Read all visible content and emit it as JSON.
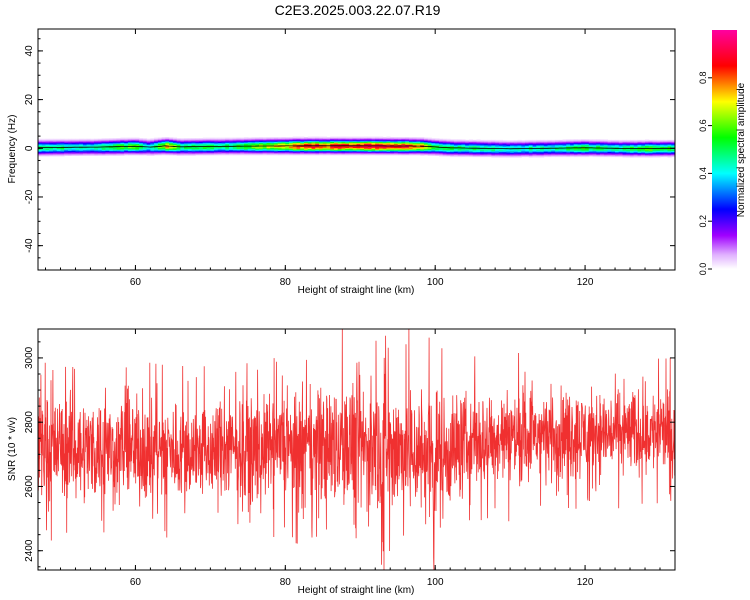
{
  "title": "C2E3.2025.003.22.07.R19",
  "colors": {
    "snr_line": "#f03030",
    "colormap": [
      "#ffffff",
      "#a000ff",
      "#0000ff",
      "#00ffff",
      "#00ff00",
      "#ffff00",
      "#ff0000",
      "#ff00a0"
    ]
  },
  "chart_data": [
    {
      "type": "heatmap",
      "xlabel": "Height of straight line (km)",
      "ylabel": "Frequency (Hz)",
      "xlim": [
        47,
        132
      ],
      "ylim": [
        -50,
        49
      ],
      "xticks": [
        60,
        80,
        100,
        120
      ],
      "yticks": [
        -40,
        -20,
        0,
        20,
        40
      ],
      "colorbar": {
        "label": "Normalized spectral amplitude",
        "range": [
          0,
          1
        ],
        "ticks": [
          0.0,
          0.2,
          0.4,
          0.6,
          0.8
        ]
      },
      "band": {
        "center_hz": [
          [
            47,
            0.3
          ],
          [
            55,
            0.5
          ],
          [
            60,
            0.8
          ],
          [
            62,
            0.5
          ],
          [
            64,
            1.0
          ],
          [
            66,
            0.6
          ],
          [
            75,
            0.9
          ],
          [
            82,
            1.0
          ],
          [
            90,
            1.0
          ],
          [
            98,
            0.9
          ],
          [
            102,
            0.2
          ],
          [
            110,
            -0.2
          ],
          [
            120,
            0.2
          ],
          [
            126,
            -0.1
          ],
          [
            132,
            0.0
          ]
        ],
        "peak_amplitude": [
          [
            47,
            0.5
          ],
          [
            55,
            0.45
          ],
          [
            60,
            0.62
          ],
          [
            62,
            0.4
          ],
          [
            64,
            0.75
          ],
          [
            66,
            0.5
          ],
          [
            72,
            0.5
          ],
          [
            78,
            0.65
          ],
          [
            82,
            0.82
          ],
          [
            90,
            0.88
          ],
          [
            97,
            0.86
          ],
          [
            100,
            0.55
          ],
          [
            103,
            0.5
          ],
          [
            108,
            0.45
          ],
          [
            115,
            0.45
          ],
          [
            120,
            0.55
          ],
          [
            124,
            0.45
          ],
          [
            128,
            0.55
          ],
          [
            132,
            0.55
          ]
        ]
      }
    },
    {
      "type": "line",
      "xlabel": "Height of straight line (km)",
      "ylabel": "SNR (10 * v/v)",
      "xlim": [
        47,
        132
      ],
      "ylim": [
        2340,
        3090
      ],
      "xticks": [
        60,
        80,
        100,
        120
      ],
      "yticks": [
        2400,
        2600,
        2800,
        3000
      ],
      "series": [
        {
          "mean": [
            [
              47,
              2720
            ],
            [
              60,
              2715
            ],
            [
              70,
              2710
            ],
            [
              80,
              2720
            ],
            [
              90,
              2725
            ],
            [
              100,
              2700
            ],
            [
              105,
              2740
            ],
            [
              110,
              2755
            ],
            [
              120,
              2765
            ],
            [
              132,
              2770
            ]
          ],
          "spread": [
            [
              47,
              85
            ],
            [
              60,
              85
            ],
            [
              70,
              80
            ],
            [
              80,
              85
            ],
            [
              88,
              110
            ],
            [
              96,
              115
            ],
            [
              100,
              110
            ],
            [
              104,
              85
            ],
            [
              115,
              75
            ],
            [
              132,
              70
            ]
          ]
        }
      ]
    }
  ]
}
